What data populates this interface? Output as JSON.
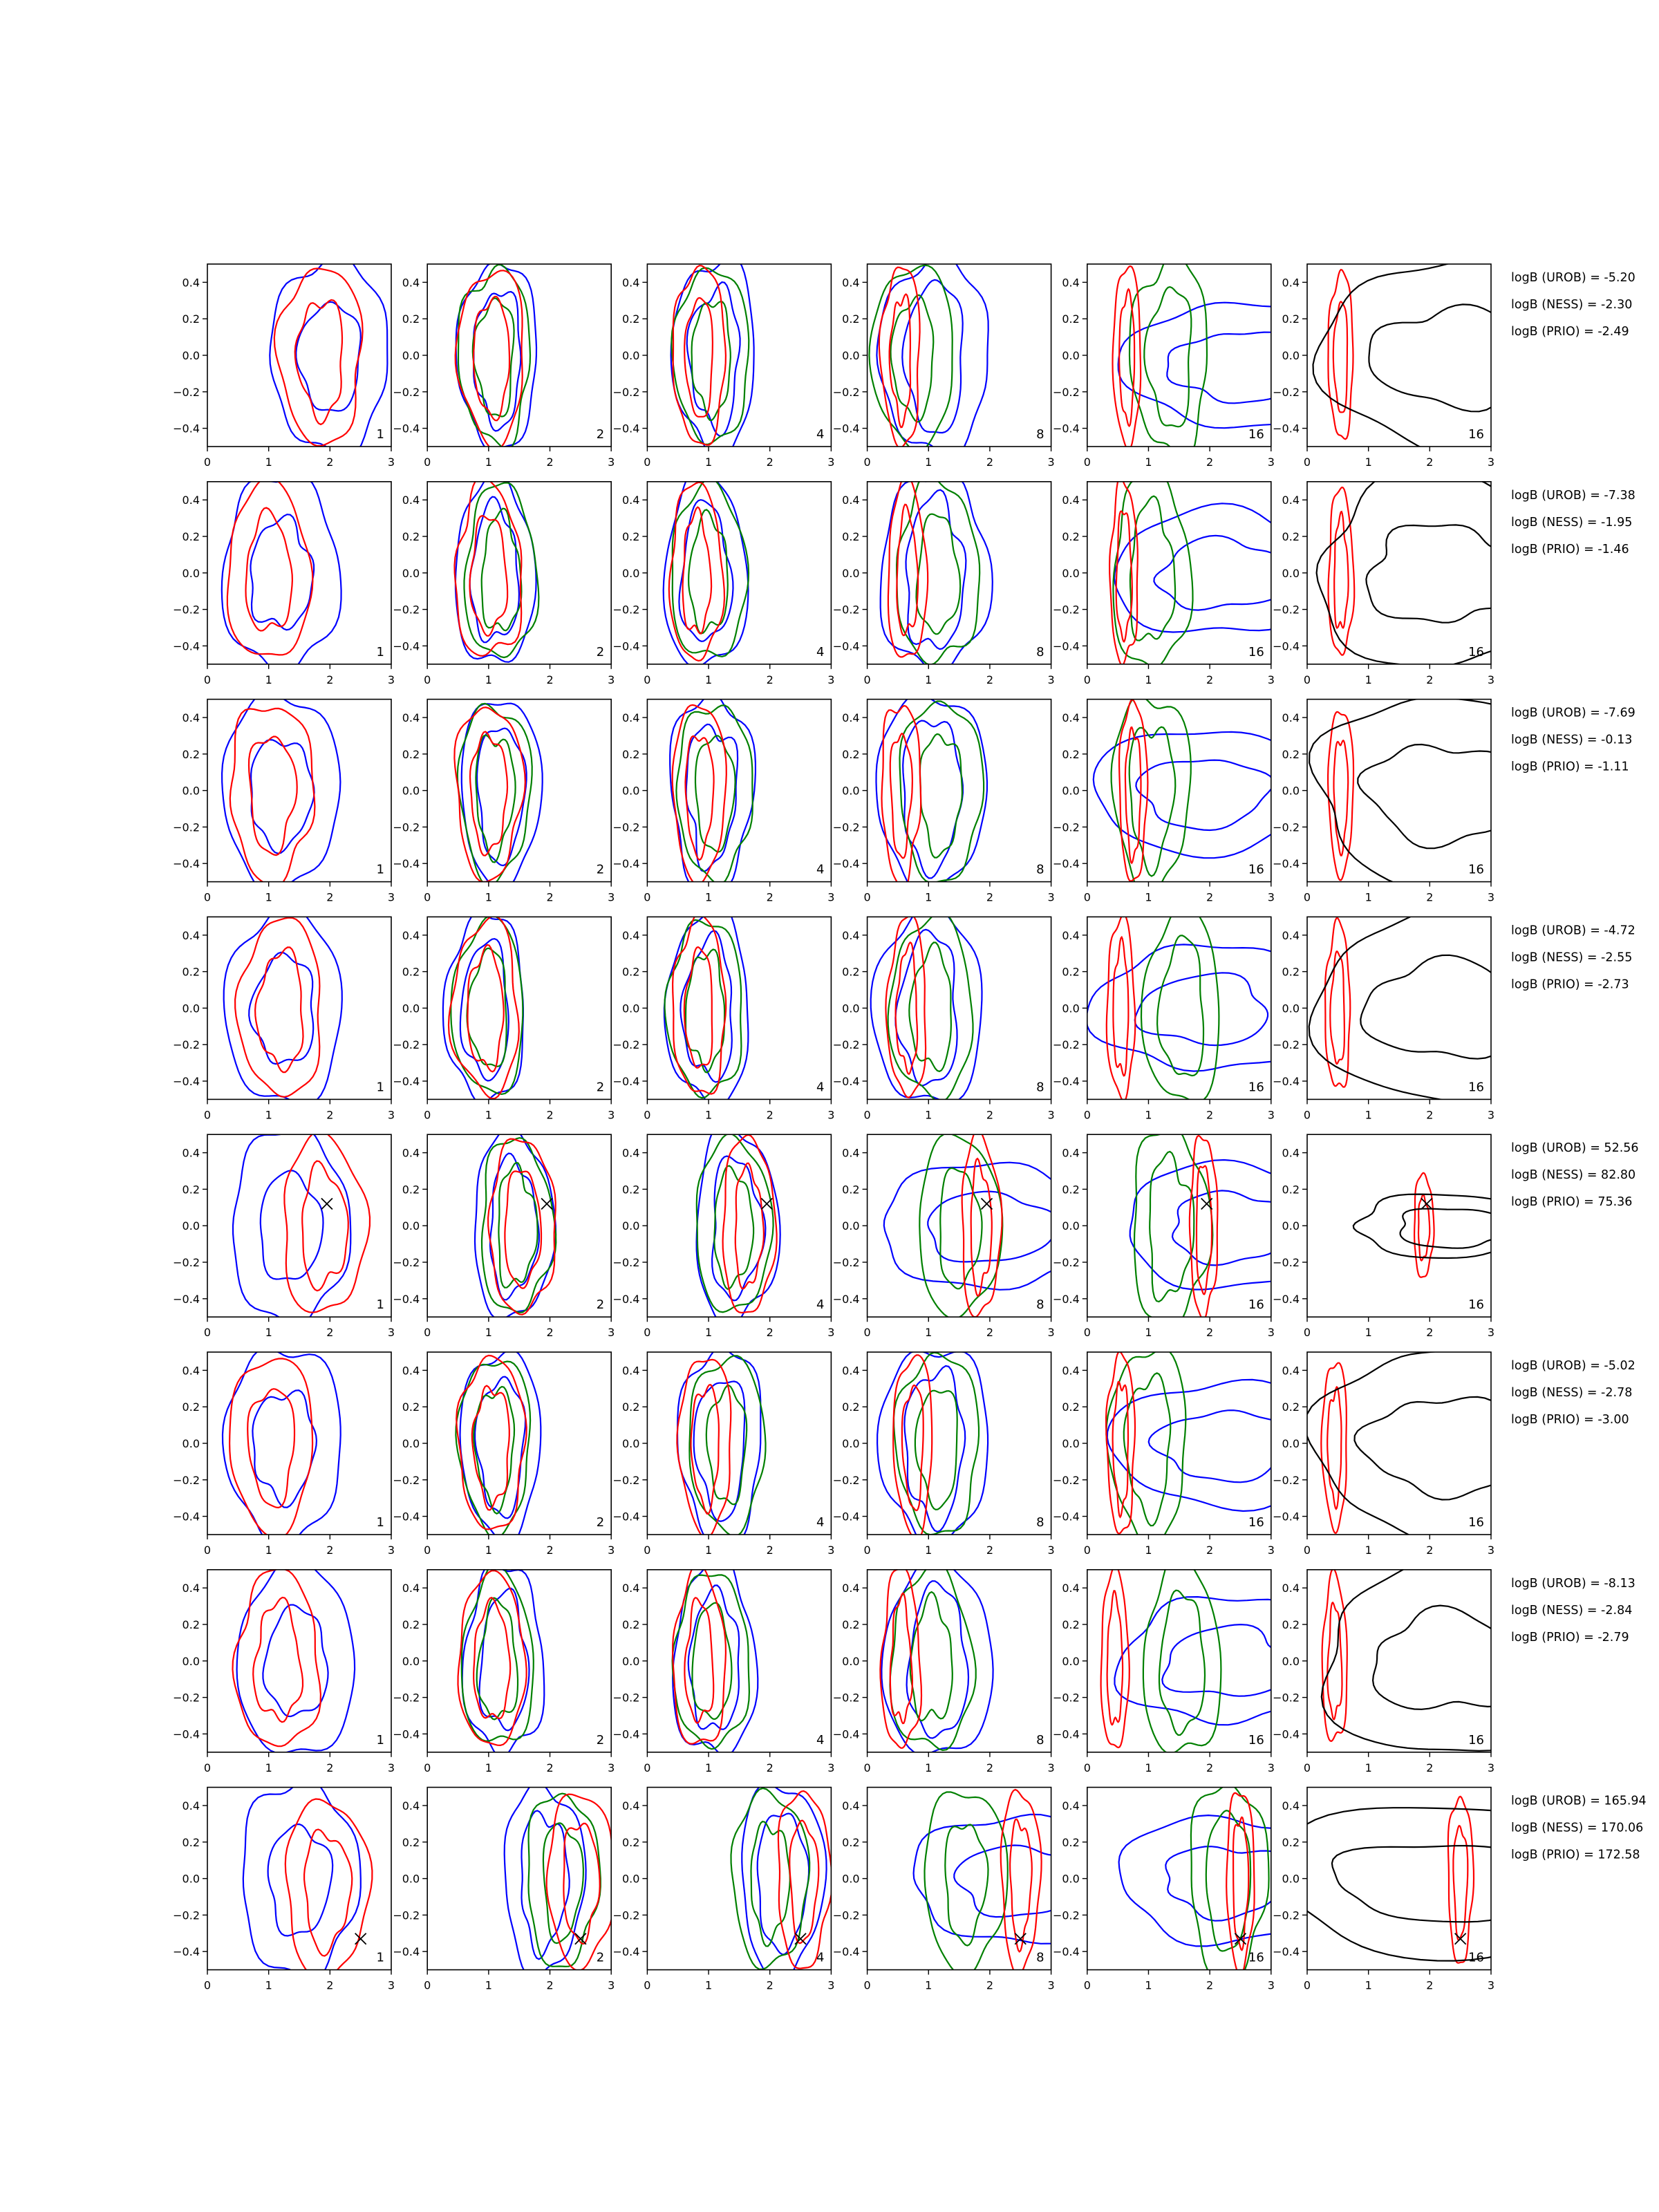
{
  "figure": {
    "columns": [
      "1",
      "2",
      "4",
      "8",
      "16",
      "16"
    ],
    "colors": {
      "blue": "#0000ff",
      "green": "#008000",
      "red": "#ff0000",
      "black": "#000000"
    }
  },
  "chart_data": {
    "type": "contour",
    "grid": "8 rows x 6 columns of panels",
    "xlim": [
      0,
      3
    ],
    "ylim": [
      -0.5,
      0.5
    ],
    "xticks": [
      "0",
      "1",
      "2",
      "3"
    ],
    "yticks": [
      "0.4",
      "0.2",
      "0.0",
      "−0.2",
      "−0.4"
    ],
    "panel_labels": [
      "1",
      "2",
      "4",
      "8",
      "16",
      "16"
    ],
    "legend": false,
    "rows": [
      {
        "marker": null,
        "annotations": [
          "logB (UROB) = -5.20",
          "logB (NESS) = -2.30",
          "logB (PRIO) = -2.49"
        ],
        "panels": [
          {
            "blue": [
              2.0,
              0.0
            ],
            "red": [
              1.85,
              0.0
            ]
          },
          {
            "blue": [
              1.15,
              0.0
            ],
            "green": [
              1.1,
              0.0
            ],
            "red": [
              1.05,
              0.0
            ]
          },
          {
            "blue": [
              1.1,
              0.0
            ],
            "green": [
              1.05,
              0.0
            ],
            "red": [
              0.85,
              0.0
            ]
          },
          {
            "blue": [
              1.1,
              0.0
            ],
            "green": [
              0.75,
              0.0
            ],
            "red": [
              0.55,
              0.0
            ]
          },
          {
            "blue": [
              2.4,
              -0.05
            ],
            "green": [
              1.35,
              0.0
            ],
            "red": [
              0.65,
              0.0
            ]
          },
          {
            "black": [
              2.3,
              0.0
            ],
            "red": [
              0.55,
              0.0
            ]
          }
        ]
      },
      {
        "marker": null,
        "annotations": [
          "logB (UROB) = -7.38",
          "logB (NESS) = -1.95",
          "logB (PRIO) = -1.46"
        ],
        "panels": [
          {
            "blue": [
              1.2,
              0.0
            ],
            "red": [
              1.0,
              0.0
            ]
          },
          {
            "blue": [
              1.1,
              0.0
            ],
            "green": [
              1.2,
              0.0
            ],
            "red": [
              1.0,
              0.0
            ]
          },
          {
            "blue": [
              0.95,
              0.0
            ],
            "green": [
              1.0,
              0.0
            ],
            "red": [
              0.8,
              0.0
            ]
          },
          {
            "blue": [
              1.1,
              0.0
            ],
            "green": [
              1.15,
              0.0
            ],
            "red": [
              0.65,
              0.0
            ]
          },
          {
            "blue": [
              2.2,
              0.0
            ],
            "green": [
              1.05,
              0.0
            ],
            "red": [
              0.6,
              0.0
            ]
          },
          {
            "black": [
              2.2,
              0.0
            ],
            "red": [
              0.55,
              0.0
            ]
          }
        ]
      },
      {
        "marker": null,
        "annotations": [
          "logB (UROB) = -7.69",
          "logB (NESS) = -0.13",
          "logB (PRIO) = -1.11"
        ],
        "panels": [
          {
            "blue": [
              1.2,
              0.0
            ],
            "red": [
              1.05,
              0.0
            ]
          },
          {
            "blue": [
              1.2,
              0.0
            ],
            "green": [
              1.1,
              0.0
            ],
            "red": [
              1.0,
              0.0
            ]
          },
          {
            "blue": [
              1.05,
              0.0
            ],
            "green": [
              1.1,
              0.0
            ],
            "red": [
              0.85,
              0.0
            ]
          },
          {
            "blue": [
              1.05,
              0.0
            ],
            "green": [
              1.2,
              0.0
            ],
            "red": [
              0.55,
              0.0
            ]
          },
          {
            "blue": [
              1.9,
              0.0
            ],
            "green": [
              1.05,
              0.0
            ],
            "red": [
              0.75,
              0.0
            ]
          },
          {
            "black": [
              2.2,
              0.0
            ],
            "red": [
              0.55,
              0.0
            ]
          }
        ]
      },
      {
        "marker": null,
        "annotations": [
          "logB (UROB) = -4.72",
          "logB (NESS) = -2.55",
          "logB (PRIO) = -2.73"
        ],
        "panels": [
          {
            "blue": [
              1.25,
              0.0
            ],
            "red": [
              1.2,
              0.0
            ]
          },
          {
            "blue": [
              0.95,
              0.0
            ],
            "green": [
              1.0,
              0.0
            ],
            "red": [
              0.95,
              0.0
            ]
          },
          {
            "blue": [
              1.0,
              0.0
            ],
            "green": [
              0.95,
              0.0
            ],
            "red": [
              0.85,
              0.0
            ]
          },
          {
            "blue": [
              1.0,
              0.0
            ],
            "green": [
              1.05,
              0.0
            ],
            "red": [
              0.65,
              0.0
            ]
          },
          {
            "blue": [
              1.9,
              0.0
            ],
            "green": [
              1.55,
              0.0
            ],
            "red": [
              0.55,
              0.0
            ]
          },
          {
            "black": [
              2.2,
              0.0
            ],
            "red": [
              0.5,
              0.0
            ]
          }
        ]
      },
      {
        "marker": [
          1.95,
          0.12
        ],
        "annotations": [
          "logB (UROB) = 52.56",
          "logB (NESS) = 82.80",
          "logB (PRIO) = 75.36"
        ],
        "panels": [
          {
            "blue": [
              1.35,
              0.0
            ],
            "red": [
              1.9,
              0.0
            ]
          },
          {
            "blue": [
              1.4,
              0.0
            ],
            "green": [
              1.45,
              0.0
            ],
            "red": [
              1.55,
              0.0
            ]
          },
          {
            "blue": [
              1.45,
              0.0
            ],
            "green": [
              1.4,
              0.0
            ],
            "red": [
              1.65,
              0.0
            ]
          },
          {
            "blue": [
              2.0,
              0.0
            ],
            "green": [
              1.5,
              0.0
            ],
            "red": [
              1.85,
              0.0
            ]
          },
          {
            "blue": [
              2.4,
              0.0
            ],
            "green": [
              1.35,
              0.0
            ],
            "red": [
              1.9,
              0.0
            ]
          },
          {
            "black": [
              2.45,
              0.0
            ],
            "red": [
              1.9,
              0.0
            ]
          }
        ]
      },
      {
        "marker": null,
        "annotations": [
          "logB (UROB) = -5.02",
          "logB (NESS) = -2.78",
          "logB (PRIO) = -3.00"
        ],
        "panels": [
          {
            "blue": [
              1.25,
              0.0
            ],
            "red": [
              1.05,
              0.0
            ]
          },
          {
            "blue": [
              1.2,
              0.0
            ],
            "green": [
              1.1,
              0.0
            ],
            "red": [
              1.05,
              0.0
            ]
          },
          {
            "blue": [
              1.2,
              0.0
            ],
            "green": [
              1.3,
              0.0
            ],
            "red": [
              0.95,
              0.0
            ]
          },
          {
            "blue": [
              1.1,
              0.0
            ],
            "green": [
              1.15,
              0.0
            ],
            "red": [
              0.75,
              0.0
            ]
          },
          {
            "blue": [
              2.2,
              0.0
            ],
            "green": [
              1.0,
              0.0
            ],
            "red": [
              0.55,
              0.0
            ]
          },
          {
            "black": [
              2.2,
              0.0
            ],
            "red": [
              0.45,
              0.0
            ]
          }
        ]
      },
      {
        "marker": null,
        "annotations": [
          "logB (UROB) = -8.13",
          "logB (NESS) = -2.84",
          "logB (PRIO) = -2.79"
        ],
        "panels": [
          {
            "blue": [
              1.45,
              0.0
            ],
            "red": [
              1.15,
              0.0
            ]
          },
          {
            "blue": [
              1.25,
              0.0
            ],
            "green": [
              1.15,
              0.0
            ],
            "red": [
              1.05,
              0.0
            ]
          },
          {
            "blue": [
              1.1,
              0.0
            ],
            "green": [
              1.05,
              0.0
            ],
            "red": [
              0.85,
              0.0
            ]
          },
          {
            "blue": [
              1.15,
              0.0
            ],
            "green": [
              1.05,
              0.0
            ],
            "red": [
              0.55,
              0.0
            ]
          },
          {
            "blue": [
              2.3,
              0.0
            ],
            "green": [
              1.55,
              0.0
            ],
            "red": [
              0.45,
              0.0
            ]
          },
          {
            "black": [
              2.3,
              0.0
            ],
            "red": [
              0.45,
              0.0
            ]
          }
        ]
      },
      {
        "marker": [
          2.5,
          -0.33
        ],
        "annotations": [
          "logB (UROB) = 165.94",
          "logB (NESS) = 170.06",
          "logB (PRIO) = 172.58"
        ],
        "panels": [
          {
            "blue": [
              1.5,
              0.0
            ],
            "red": [
              1.95,
              -0.05
            ]
          },
          {
            "blue": [
              1.9,
              0.0
            ],
            "green": [
              2.2,
              0.0
            ],
            "red": [
              2.5,
              0.0
            ]
          },
          {
            "blue": [
              2.2,
              0.0
            ],
            "green": [
              2.0,
              0.0
            ],
            "red": [
              2.55,
              0.0
            ]
          },
          {
            "blue": [
              2.5,
              0.0
            ],
            "green": [
              1.6,
              0.0
            ],
            "red": [
              2.5,
              0.0
            ]
          },
          {
            "blue": [
              2.3,
              0.0
            ],
            "green": [
              2.3,
              0.0
            ],
            "red": [
              2.5,
              0.0
            ]
          },
          {
            "black": [
              2.4,
              0.0
            ],
            "red": [
              2.5,
              0.0
            ]
          }
        ]
      }
    ]
  }
}
